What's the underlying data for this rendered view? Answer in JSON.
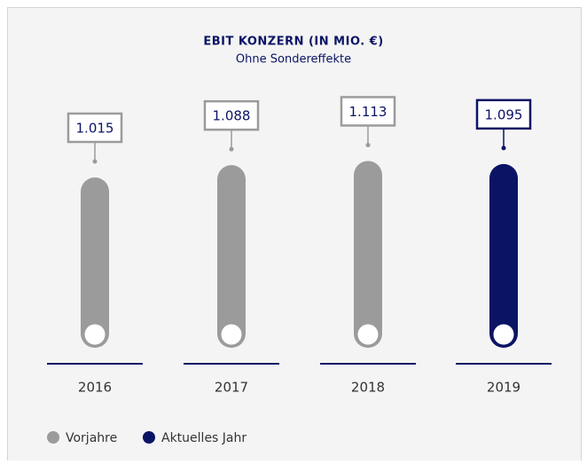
{
  "chart_data": {
    "type": "bar",
    "title": "EBIT KONZERN (IN MIO. €)",
    "subtitle": "Ohne Sondereffekte",
    "categories": [
      "2016",
      "2017",
      "2018",
      "2019"
    ],
    "values": [
      1015,
      1088,
      1113,
      1095
    ],
    "value_labels": [
      "1.015",
      "1.088",
      "1.113",
      "1.095"
    ],
    "colors": [
      "#9b9b9b",
      "#9b9b9b",
      "#9b9b9b",
      "#0b1464"
    ],
    "ylim": [
      0,
      1200
    ],
    "legend": [
      {
        "name": "Vorjahre",
        "color": "#9b9b9b"
      },
      {
        "name": "Aktuelles Jahr",
        "color": "#0b1464"
      }
    ]
  }
}
